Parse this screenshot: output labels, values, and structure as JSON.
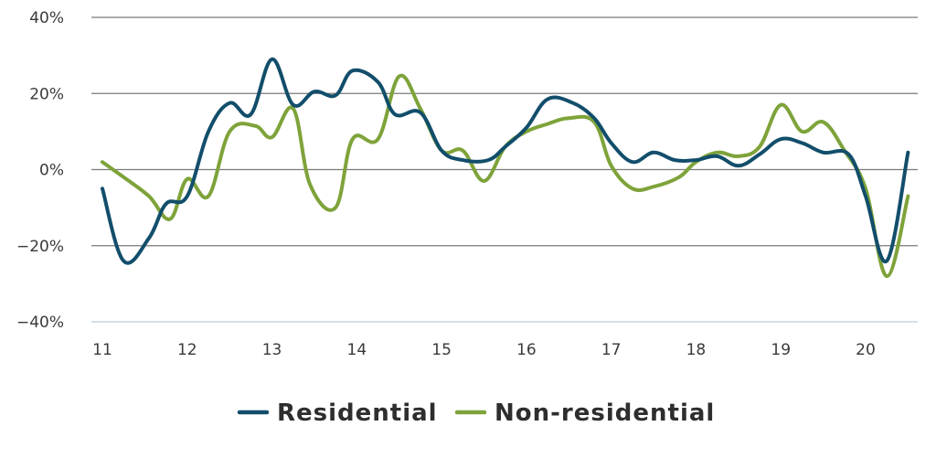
{
  "chart_data": {
    "type": "line",
    "title": "",
    "xlabel": "",
    "ylabel": "",
    "ylim": [
      -40,
      40
    ],
    "xlim": [
      11,
      20.5
    ],
    "x_ticks": [
      11,
      12,
      13,
      14,
      15,
      16,
      17,
      18,
      19,
      20
    ],
    "x_tick_labels": [
      "11",
      "12",
      "13",
      "14",
      "15",
      "16",
      "17",
      "18",
      "19",
      "20"
    ],
    "y_ticks": [
      -40,
      -20,
      0,
      20,
      40
    ],
    "y_tick_labels": [
      "−40%",
      "−20%",
      "0%",
      "20%",
      "40%"
    ],
    "grid": true,
    "legend_position": "bottom",
    "series": [
      {
        "name": "Residential",
        "color": "#124e6b",
        "points": [
          [
            11.0,
            -5
          ],
          [
            11.25,
            -24
          ],
          [
            11.55,
            -18
          ],
          [
            11.75,
            -9
          ],
          [
            12.0,
            -7
          ],
          [
            12.25,
            10
          ],
          [
            12.5,
            17.5
          ],
          [
            12.75,
            14.5
          ],
          [
            13.0,
            29
          ],
          [
            13.25,
            17
          ],
          [
            13.5,
            20.5
          ],
          [
            13.75,
            19.5
          ],
          [
            13.95,
            26
          ],
          [
            14.25,
            23
          ],
          [
            14.45,
            14.5
          ],
          [
            14.75,
            15
          ],
          [
            15.0,
            5
          ],
          [
            15.25,
            2.5
          ],
          [
            15.55,
            2.5
          ],
          [
            15.75,
            6
          ],
          [
            16.0,
            11
          ],
          [
            16.25,
            18.5
          ],
          [
            16.55,
            17.5
          ],
          [
            16.8,
            13.5
          ],
          [
            17.0,
            7
          ],
          [
            17.25,
            2
          ],
          [
            17.5,
            4.5
          ],
          [
            17.75,
            2.5
          ],
          [
            18.0,
            2.5
          ],
          [
            18.25,
            3.5
          ],
          [
            18.5,
            1
          ],
          [
            18.75,
            4
          ],
          [
            19.0,
            8
          ],
          [
            19.25,
            7
          ],
          [
            19.5,
            4.5
          ],
          [
            19.8,
            4
          ],
          [
            20.0,
            -7
          ],
          [
            20.25,
            -24
          ],
          [
            20.5,
            4.5
          ]
        ]
      },
      {
        "name": "Non-residential",
        "color": "#7ea33a",
        "points": [
          [
            11.0,
            2
          ],
          [
            11.25,
            -2
          ],
          [
            11.55,
            -7
          ],
          [
            11.8,
            -13
          ],
          [
            12.0,
            -2.5
          ],
          [
            12.25,
            -7
          ],
          [
            12.5,
            10
          ],
          [
            12.8,
            11.5
          ],
          [
            13.0,
            8.5
          ],
          [
            13.25,
            16
          ],
          [
            13.45,
            -4
          ],
          [
            13.75,
            -10
          ],
          [
            13.95,
            8
          ],
          [
            14.25,
            8
          ],
          [
            14.5,
            24.5
          ],
          [
            14.75,
            16
          ],
          [
            15.0,
            5
          ],
          [
            15.25,
            5
          ],
          [
            15.5,
            -3
          ],
          [
            15.75,
            6
          ],
          [
            16.0,
            10
          ],
          [
            16.25,
            12
          ],
          [
            16.5,
            13.5
          ],
          [
            16.8,
            12.5
          ],
          [
            17.0,
            1
          ],
          [
            17.25,
            -5
          ],
          [
            17.5,
            -4.5
          ],
          [
            17.8,
            -2
          ],
          [
            18.0,
            2
          ],
          [
            18.25,
            4.5
          ],
          [
            18.5,
            3.5
          ],
          [
            18.75,
            6
          ],
          [
            19.0,
            17
          ],
          [
            19.25,
            10
          ],
          [
            19.5,
            12.5
          ],
          [
            19.75,
            5
          ],
          [
            20.0,
            -5
          ],
          [
            20.25,
            -28
          ],
          [
            20.5,
            -7
          ]
        ]
      }
    ]
  }
}
